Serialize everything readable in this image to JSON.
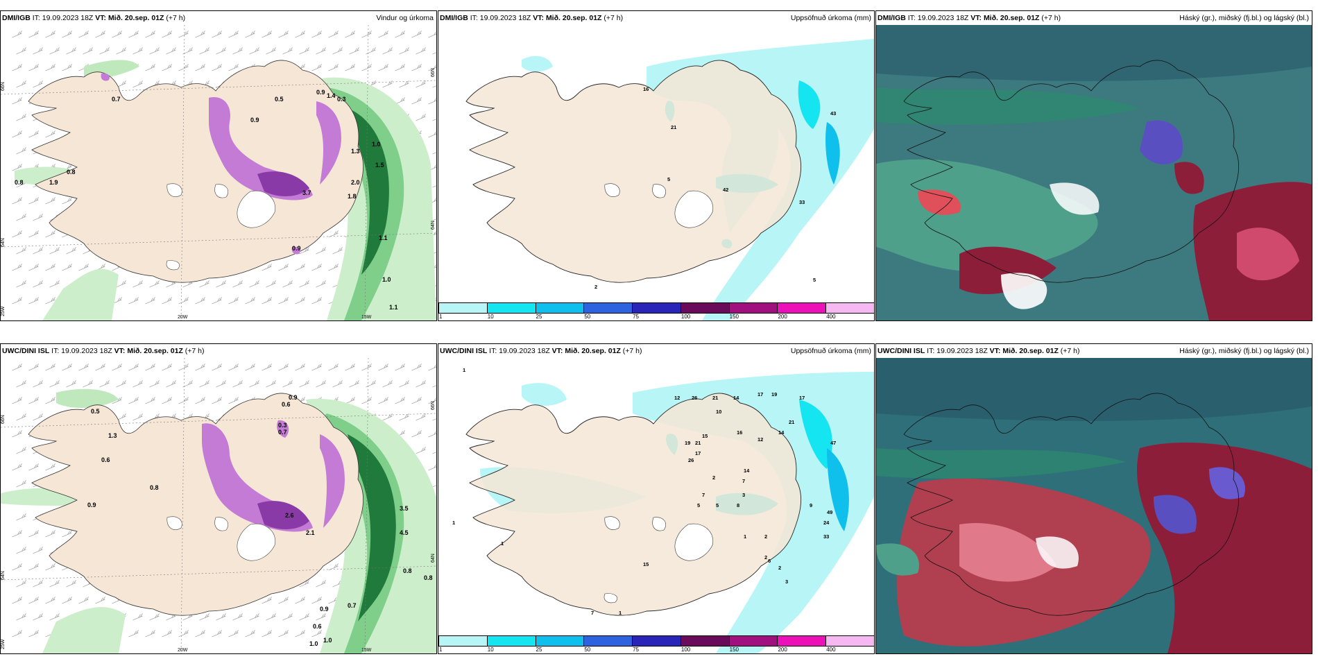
{
  "panels": {
    "p1": {
      "model": "DMI/IGB",
      "it": "IT: 19.09.2023 18Z",
      "vt_label": "VT:",
      "vt_value": "Mið. 20.sep. 01Z",
      "lead": "(+7 h)",
      "title": "Vindur og úrkoma"
    },
    "p2": {
      "model": "DMI/IGB",
      "it": "IT: 19.09.2023 18Z",
      "vt_label": "VT:",
      "vt_value": "Mið. 20.sep. 01Z",
      "lead": "(+7 h)",
      "title": "Uppsöfnuð úrkoma (mm)"
    },
    "p3": {
      "model": "DMI/IGB",
      "it": "IT: 19.09.2023 18Z",
      "vt_label": "VT:",
      "vt_value": "Mið. 20.sep. 01Z",
      "lead": "(+7 h)",
      "title": "Háský (gr.), miðský (fj.bl.) og lágský (bl.)"
    },
    "p4": {
      "model": "UWC/DINI ISL",
      "it": "IT: 19.09.2023 18Z",
      "vt_label": "VT:",
      "vt_value": "Mið. 20.sep. 01Z",
      "lead": "(+7 h)",
      "title": ""
    },
    "p5": {
      "model": "UWC/DINI ISL",
      "it": "IT: 19.09.2023 18Z",
      "vt_label": "VT:",
      "vt_value": "Mið. 20.sep. 01Z",
      "lead": "(+7 h)",
      "title": "Uppsöfnuð úrkoma (mm)"
    },
    "p6": {
      "model": "UWC/DINI ISL",
      "it": "IT: 19.09.2023 18Z",
      "vt_label": "VT:",
      "vt_value": "Mið. 20.sep. 01Z",
      "lead": "(+7 h)",
      "title": "Háský (gr.), miðský (fj.bl.) og lágský (bl.)"
    }
  },
  "grid": {
    "lat_66": "66N",
    "lat_64": "64N",
    "lon_20w": "20W",
    "lon_15w": "15W",
    "lon_25w": "25W"
  },
  "colorbar": {
    "ticks": [
      "1",
      "10",
      "25",
      "50",
      "75",
      "100",
      "150",
      "200",
      "400"
    ],
    "colors": [
      "#b8f5f7",
      "#14e5f0",
      "#10c0ec",
      "#2e63e0",
      "#2a25b8",
      "#6a0a5a",
      "#a0107e",
      "#ec10b8",
      "#f5b8f0"
    ]
  },
  "map_labels": {
    "p1": [
      "0.7",
      "0.5",
      "0.9",
      "0.3",
      "0.9",
      "1.4",
      "1.0",
      "1.3",
      "1.5",
      "2.0",
      "0.8",
      "1.9",
      "3.7",
      "1.8",
      "0.8",
      "0.9",
      "1.1",
      "1.0",
      "1.1"
    ],
    "p2": [
      "16",
      "21",
      "43",
      "5",
      "42",
      "33",
      "5",
      "2"
    ],
    "p4": [
      "0.5",
      "1.3",
      "0.6",
      "0.9",
      "0.3",
      "0.6",
      "0.7",
      "0.8",
      "0.9",
      "2.6",
      "2.1",
      "3.5",
      "4.5",
      "0.8",
      "0.8",
      "0.7",
      "0.9",
      "0.6",
      "1.0",
      "1.0"
    ],
    "p5": [
      "1",
      "12",
      "26",
      "21",
      "14",
      "10",
      "17",
      "19",
      "17",
      "21",
      "14",
      "15",
      "16",
      "47",
      "12",
      "19",
      "21",
      "17",
      "26",
      "2",
      "14",
      "7",
      "3",
      "7",
      "5",
      "5",
      "8",
      "9",
      "49",
      "24",
      "33",
      "1",
      "2",
      "2",
      "6",
      "2",
      "3",
      "15",
      "7",
      "1",
      "1",
      "1"
    ]
  },
  "colors": {
    "land": "#f5e6d6",
    "cloud_base": "#3d7a80"
  }
}
